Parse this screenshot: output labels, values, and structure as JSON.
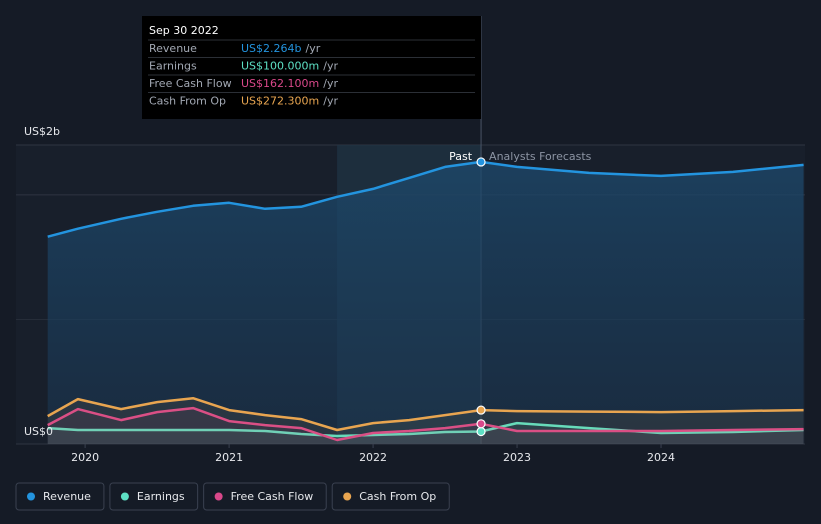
{
  "chart_data": {
    "type": "line",
    "x": [
      2019.74,
      2019.95,
      2020.25,
      2020.5,
      2020.75,
      2021,
      2021.25,
      2021.5,
      2021.75,
      2022,
      2022.25,
      2022.5,
      2022.75,
      2023,
      2023.5,
      2024,
      2024.5,
      2024.99
    ],
    "series": [
      {
        "name": "Revenue",
        "color": "#2394df",
        "values": [
          1664,
          1728,
          1808,
          1864,
          1912,
          1936,
          1888,
          1904,
          1984,
          2048,
          2136,
          2224,
          2264,
          2224,
          2176,
          2152,
          2184,
          2240
        ]
      },
      {
        "name": "Earnings",
        "color": "#5de0c4",
        "values": [
          128,
          112,
          112,
          112,
          112,
          112,
          104,
          80,
          64,
          72,
          80,
          96,
          100,
          168,
          128,
          88,
          96,
          112
        ]
      },
      {
        "name": "Free Cash Flow",
        "color": "#d9488a",
        "values": [
          152,
          280,
          192,
          256,
          288,
          184,
          152,
          128,
          32,
          88,
          104,
          128,
          162.1,
          104,
          104,
          104,
          112,
          120
        ]
      },
      {
        "name": "Cash From Op",
        "color": "#e8a550",
        "values": [
          224,
          360,
          280,
          336,
          368,
          272,
          232,
          200,
          112,
          168,
          192,
          232,
          272.3,
          264,
          260,
          256,
          264,
          272
        ]
      }
    ],
    "xlim": [
      2019.52,
      2025.0
    ],
    "xticks": [
      2020,
      2021,
      2022,
      2023,
      2024
    ],
    "ylim": [
      0,
      2400
    ],
    "yticks": [
      {
        "value": 0,
        "label": "US$0"
      },
      {
        "value": 2000,
        "label": "US$2b"
      }
    ],
    "highlight": [
      2021.75,
      2022.75
    ],
    "annotations": {
      "past": "Past",
      "forecast": "Analysts Forecasts"
    },
    "tooltip": {
      "title": "Sep 30 2022",
      "per": "/yr",
      "rows": [
        {
          "label": "Revenue",
          "value": "US$2.264b"
        },
        {
          "label": "Earnings",
          "value": "US$100.000m"
        },
        {
          "label": "Free Cash Flow",
          "value": "US$162.100m"
        },
        {
          "label": "Cash From Op",
          "value": "US$272.300m"
        }
      ]
    }
  }
}
